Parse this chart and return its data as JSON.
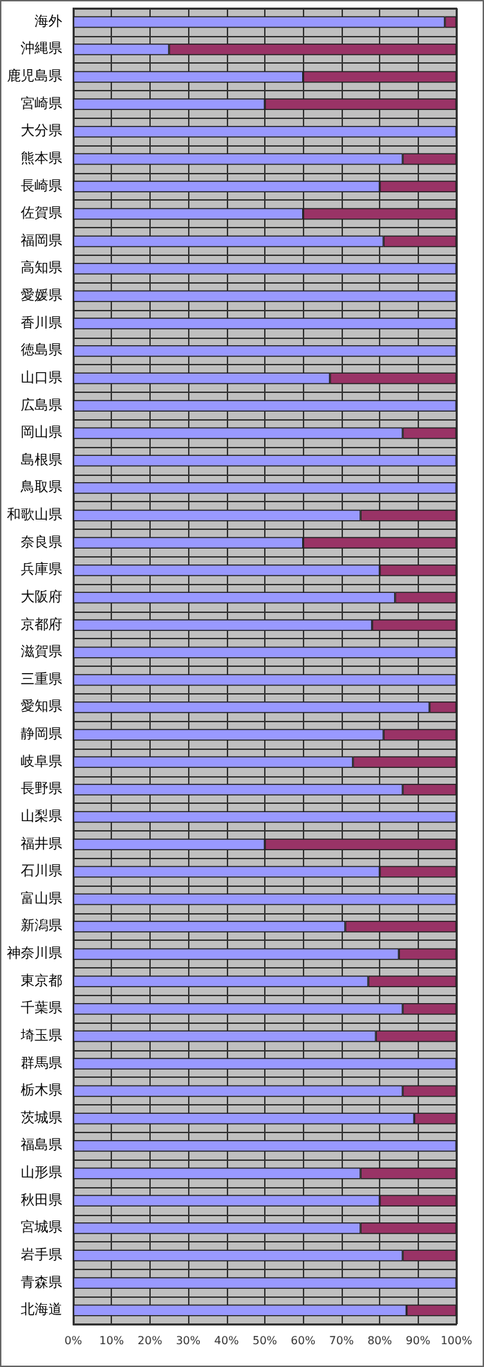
{
  "chart_data": {
    "type": "bar",
    "orientation": "horizontal",
    "stacked": true,
    "categories": [
      "海外",
      "沖縄県",
      "鹿児島県",
      "宮崎県",
      "大分県",
      "熊本県",
      "長崎県",
      "佐賀県",
      "福岡県",
      "高知県",
      "愛媛県",
      "香川県",
      "徳島県",
      "山口県",
      "広島県",
      "岡山県",
      "島根県",
      "鳥取県",
      "和歌山県",
      "奈良県",
      "兵庫県",
      "大阪府",
      "京都府",
      "滋賀県",
      "三重県",
      "愛知県",
      "静岡県",
      "岐阜県",
      "長野県",
      "山梨県",
      "福井県",
      "石川県",
      "富山県",
      "新潟県",
      "神奈川県",
      "東京都",
      "千葉県",
      "埼玉県",
      "群馬県",
      "栃木県",
      "茨城県",
      "福島県",
      "山形県",
      "秋田県",
      "宮城県",
      "岩手県",
      "青森県",
      "北海道"
    ],
    "series": [
      {
        "color": "#9999ff",
        "values": [
          97,
          25,
          60,
          50,
          100,
          86,
          80,
          60,
          81,
          100,
          100,
          100,
          100,
          67,
          100,
          86,
          100,
          100,
          75,
          60,
          80,
          84,
          78,
          100,
          100,
          93,
          81,
          73,
          86,
          100,
          50,
          80,
          100,
          71,
          85,
          77,
          86,
          79,
          100,
          86,
          89,
          100,
          75,
          80,
          75,
          86,
          100,
          87
        ]
      },
      {
        "color": "#993366",
        "values": [
          3,
          75,
          40,
          50,
          0,
          14,
          20,
          40,
          19,
          0,
          0,
          0,
          0,
          33,
          0,
          14,
          0,
          0,
          25,
          40,
          20,
          16,
          22,
          0,
          0,
          7,
          19,
          27,
          14,
          0,
          50,
          20,
          0,
          29,
          15,
          23,
          14,
          21,
          0,
          14,
          11,
          0,
          25,
          20,
          25,
          14,
          0,
          13
        ]
      }
    ],
    "xlim": [
      0,
      100
    ],
    "xticks": [
      {
        "value": 0,
        "label": "0%"
      },
      {
        "value": 10,
        "label": "10%"
      },
      {
        "value": 20,
        "label": "20%"
      },
      {
        "value": 30,
        "label": "30%"
      },
      {
        "value": 40,
        "label": "40%"
      },
      {
        "value": 50,
        "label": "50%"
      },
      {
        "value": 60,
        "label": "60%"
      },
      {
        "value": 70,
        "label": "70%"
      },
      {
        "value": 80,
        "label": "80%"
      },
      {
        "value": 90,
        "label": "90%"
      },
      {
        "value": 100,
        "label": "100%"
      }
    ],
    "grid": true
  }
}
